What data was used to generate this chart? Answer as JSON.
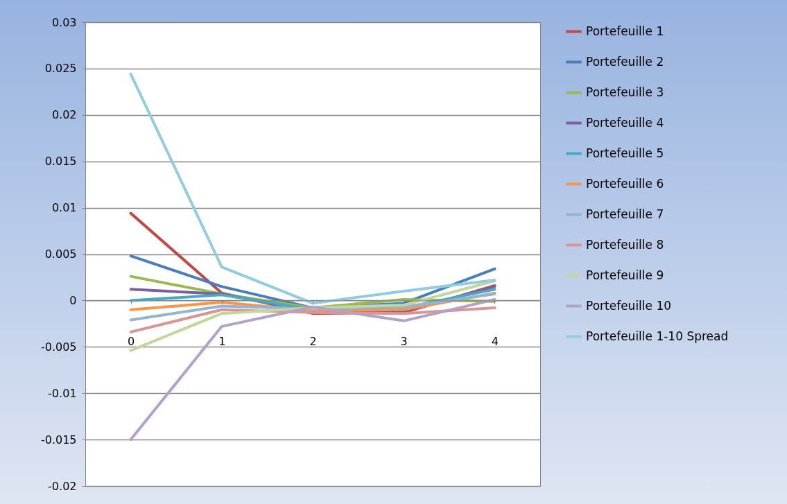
{
  "chart_data": {
    "type": "line",
    "categories": [
      "0",
      "1",
      "2",
      "3",
      "4"
    ],
    "ylim": [
      -0.02,
      0.03
    ],
    "yticks": [
      -0.02,
      -0.015,
      -0.01,
      -0.005,
      0,
      0.005,
      0.01,
      0.015,
      0.02,
      0.025,
      0.03
    ],
    "grid": "y",
    "legend": "right",
    "marker": "none",
    "line_style": "solid",
    "series": [
      {
        "name": "Portefeuille 1",
        "color": "#be4b48",
        "values": [
          0.0094,
          0.0008,
          -0.0014,
          -0.0013,
          0.0016
        ]
      },
      {
        "name": "Portefeuille 2",
        "color": "#4a7ebb",
        "values": [
          0.0048,
          0.0015,
          -0.0008,
          -0.0003,
          0.0034
        ]
      },
      {
        "name": "Portefeuille 3",
        "color": "#98b954",
        "values": [
          0.0026,
          0.0007,
          -0.0008,
          0.0001,
          -0.0001
        ]
      },
      {
        "name": "Portefeuille 4",
        "color": "#7d60a0",
        "values": [
          0.0012,
          0.0007,
          -0.0012,
          -0.0012,
          0.0015
        ]
      },
      {
        "name": "Portefeuille 5",
        "color": "#46aac5",
        "values": [
          0.0,
          0.0006,
          -0.001,
          -0.0008,
          0.0012
        ]
      },
      {
        "name": "Portefeuille 6",
        "color": "#f79646",
        "values": [
          -0.001,
          -0.0002,
          -0.0011,
          -0.001,
          0.0008
        ]
      },
      {
        "name": "Portefeuille 7",
        "color": "#95b3d7",
        "values": [
          -0.0021,
          -0.0006,
          -0.0009,
          -0.0007,
          0.0007
        ]
      },
      {
        "name": "Portefeuille 8",
        "color": "#d99694",
        "values": [
          -0.0034,
          -0.001,
          -0.0013,
          -0.0014,
          -0.0008
        ]
      },
      {
        "name": "Portefeuille 9",
        "color": "#c3d69b",
        "values": [
          -0.0054,
          -0.0014,
          -0.0008,
          -0.0005,
          0.0021
        ]
      },
      {
        "name": "Portefeuille 10",
        "color": "#b3a2c7",
        "values": [
          -0.015,
          -0.0028,
          -0.0007,
          -0.0022,
          0.0001
        ]
      },
      {
        "name": "Portefeuille 1-10 Spread",
        "color": "#93cddd",
        "values": [
          0.0244,
          0.0036,
          -0.0003,
          0.001,
          0.0022
        ]
      }
    ]
  }
}
